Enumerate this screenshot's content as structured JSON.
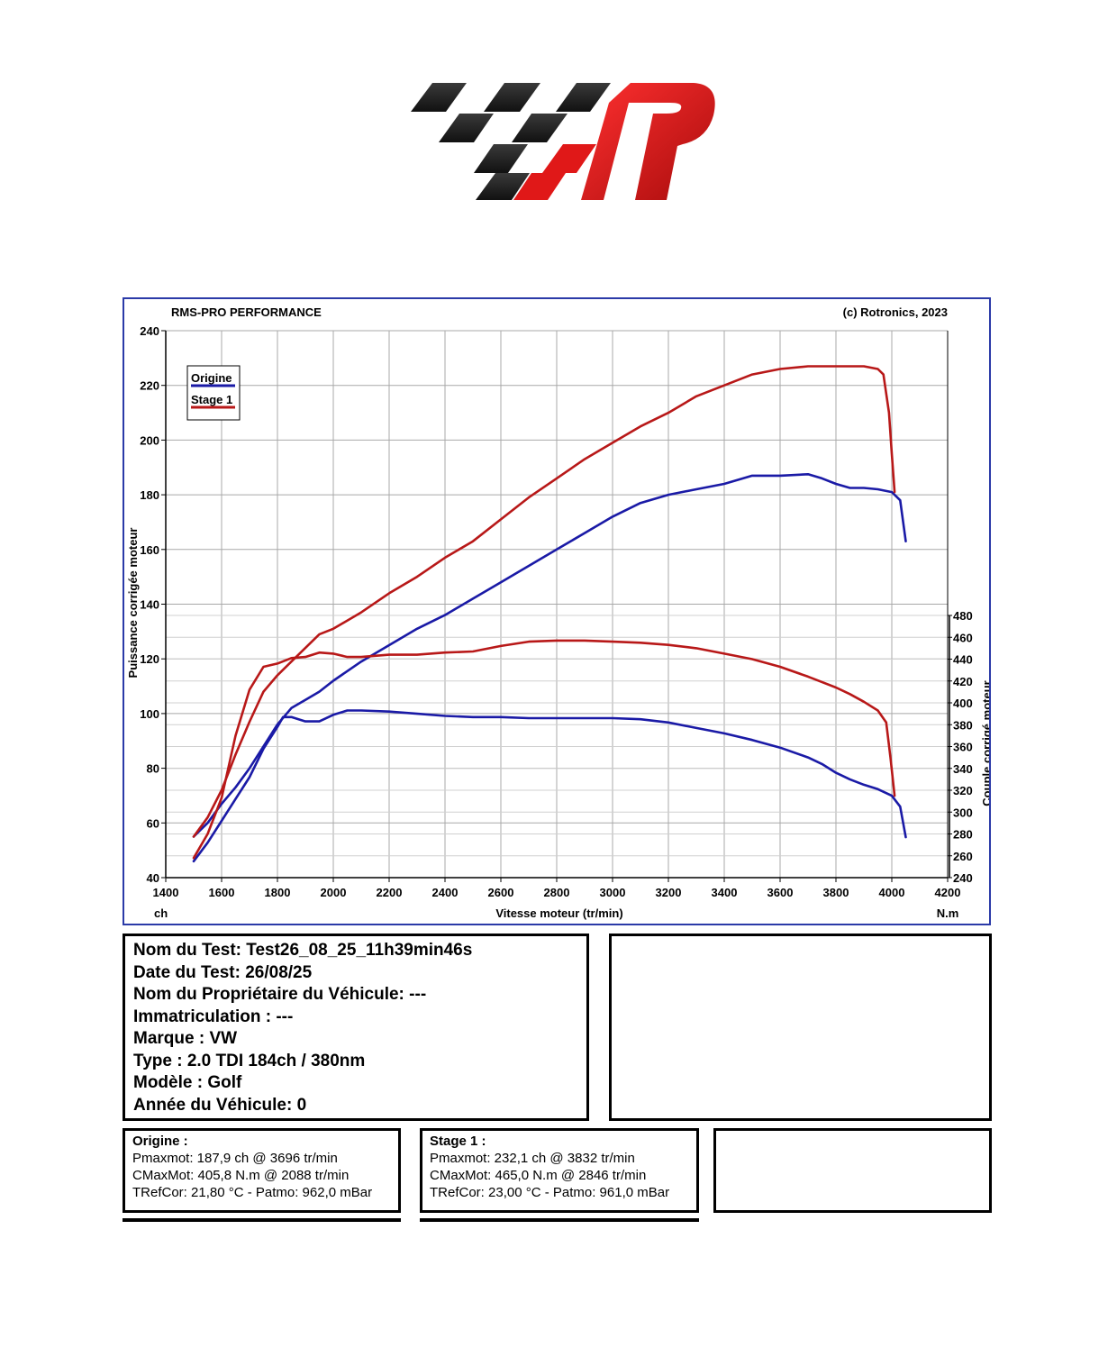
{
  "colors": {
    "origine": "#1a1aa6",
    "stage1": "#b81818",
    "frame": "#2b3aa8",
    "grid": "#a8a8a8",
    "logo_dark": "#1e1e1e",
    "logo_red": "#e01818"
  },
  "chart_header": {
    "left": "RMS-PRO PERFORMANCE",
    "right": "(c) Rotronics, 2023"
  },
  "chart_data": {
    "type": "line",
    "xlabel": "Vitesse moteur (tr/min)",
    "ylabel_left": "Puissance corrigée moteur",
    "ylabel_right": "Couple corrigé moteur",
    "unit_left": "ch",
    "unit_right": "N.m",
    "xlim": [
      1400,
      4200
    ],
    "ylim_left": [
      40,
      240
    ],
    "ylim_right": [
      240,
      480
    ],
    "x_ticks": [
      "1400",
      "1600",
      "1800",
      "2000",
      "2200",
      "2400",
      "2600",
      "2800",
      "3000",
      "3200",
      "3400",
      "3600",
      "3800",
      "4000",
      "4200"
    ],
    "y_left_ticks": [
      "40",
      "60",
      "80",
      "100",
      "120",
      "140",
      "160",
      "180",
      "200",
      "220",
      "240"
    ],
    "y_right_ticks": [
      "240",
      "260",
      "280",
      "300",
      "320",
      "340",
      "360",
      "380",
      "400",
      "420",
      "440",
      "460",
      "480"
    ],
    "grid": true,
    "legend_position": "top-left",
    "legend": [
      "Origine",
      "Stage 1"
    ],
    "series": [
      {
        "name": "Origine",
        "quantity": "power",
        "axis": "left",
        "x": [
          1500,
          1550,
          1600,
          1650,
          1700,
          1750,
          1800,
          1850,
          1900,
          1950,
          2000,
          2100,
          2200,
          2300,
          2400,
          2500,
          2600,
          2700,
          2800,
          2900,
          3000,
          3100,
          3200,
          3300,
          3400,
          3500,
          3600,
          3700,
          3750,
          3800,
          3850,
          3900,
          3950,
          4000,
          4030,
          4050
        ],
        "y": [
          55,
          60,
          67,
          73,
          80,
          88,
          96,
          102,
          105,
          108,
          112,
          119,
          125,
          131,
          136,
          142,
          148,
          154,
          160,
          166,
          172,
          177,
          180,
          182,
          184,
          187,
          187,
          187.5,
          186,
          184,
          182.5,
          182.5,
          182,
          181,
          178,
          163
        ]
      },
      {
        "name": "Origine",
        "quantity": "torque",
        "axis": "right",
        "x": [
          1500,
          1550,
          1600,
          1650,
          1700,
          1750,
          1800,
          1820,
          1850,
          1900,
          1950,
          2000,
          2050,
          2100,
          2200,
          2300,
          2400,
          2500,
          2600,
          2700,
          2800,
          2900,
          3000,
          3100,
          3200,
          3300,
          3400,
          3500,
          3600,
          3700,
          3750,
          3800,
          3850,
          3900,
          3950,
          4000,
          4030,
          4050
        ],
        "y": [
          255,
          272,
          292,
          312,
          332,
          358,
          378,
          387,
          387,
          383,
          383,
          389,
          393,
          393,
          392,
          390,
          388,
          387,
          387,
          386,
          386,
          386,
          386,
          385,
          382,
          377,
          372,
          366,
          359,
          350,
          344,
          336,
          330,
          325,
          321,
          315,
          305,
          277
        ]
      },
      {
        "name": "Stage 1",
        "quantity": "power",
        "axis": "left",
        "x": [
          1500,
          1550,
          1600,
          1650,
          1700,
          1750,
          1800,
          1850,
          1900,
          1950,
          2000,
          2100,
          2200,
          2300,
          2400,
          2500,
          2600,
          2700,
          2800,
          2900,
          3000,
          3100,
          3200,
          3300,
          3400,
          3500,
          3600,
          3700,
          3800,
          3900,
          3950,
          3970,
          3990,
          4000,
          4010
        ],
        "y": [
          55,
          62,
          72,
          85,
          97,
          108,
          114,
          119,
          124,
          129,
          131,
          137,
          144,
          150,
          157,
          163,
          171,
          179,
          186,
          193,
          199,
          205,
          210,
          216,
          220,
          224,
          226,
          227,
          227,
          227,
          226,
          224,
          210,
          195,
          181
        ]
      },
      {
        "name": "Stage 1",
        "quantity": "torque",
        "axis": "right",
        "x": [
          1500,
          1550,
          1600,
          1650,
          1700,
          1750,
          1800,
          1850,
          1900,
          1950,
          2000,
          2050,
          2100,
          2200,
          2300,
          2400,
          2500,
          2600,
          2700,
          2800,
          2900,
          3000,
          3100,
          3200,
          3300,
          3400,
          3500,
          3600,
          3700,
          3800,
          3850,
          3900,
          3950,
          3980,
          3995,
          4010
        ],
        "y": [
          258,
          280,
          313,
          370,
          412,
          433,
          436,
          441,
          442,
          446,
          445,
          442,
          442,
          444,
          444,
          446,
          447,
          452,
          456,
          457,
          457,
          456,
          455,
          453,
          450,
          445,
          440,
          433,
          424,
          414,
          408,
          401,
          393,
          382,
          350,
          315
        ]
      }
    ]
  },
  "test_info": [
    "Nom du Test: Test26_08_25_11h39min46s",
    "Date du Test: 26/08/25",
    "Nom du Propriétaire du Véhicule: ---",
    "Immatriculation  : ---",
    "Marque  : VW",
    "Type  : 2.0 TDI 184ch / 380nm",
    "Modèle  : Golf",
    "Année du Véhicule: 0"
  ],
  "summaries": {
    "origine": {
      "title": "Origine :",
      "lines": [
        "Pmaxmot: 187,9 ch @ 3696 tr/min",
        "CMaxMot: 405,8 N.m @ 2088 tr/min",
        "TRefCor: 21,80 °C - Patmo: 962,0 mBar"
      ]
    },
    "stage1": {
      "title": "Stage 1 :",
      "lines": [
        "Pmaxmot: 232,1 ch @ 3832 tr/min",
        "CMaxMot: 465,0 N.m @ 2846 tr/min",
        "TRefCor: 23,00 °C - Patmo: 961,0 mBar"
      ]
    }
  }
}
